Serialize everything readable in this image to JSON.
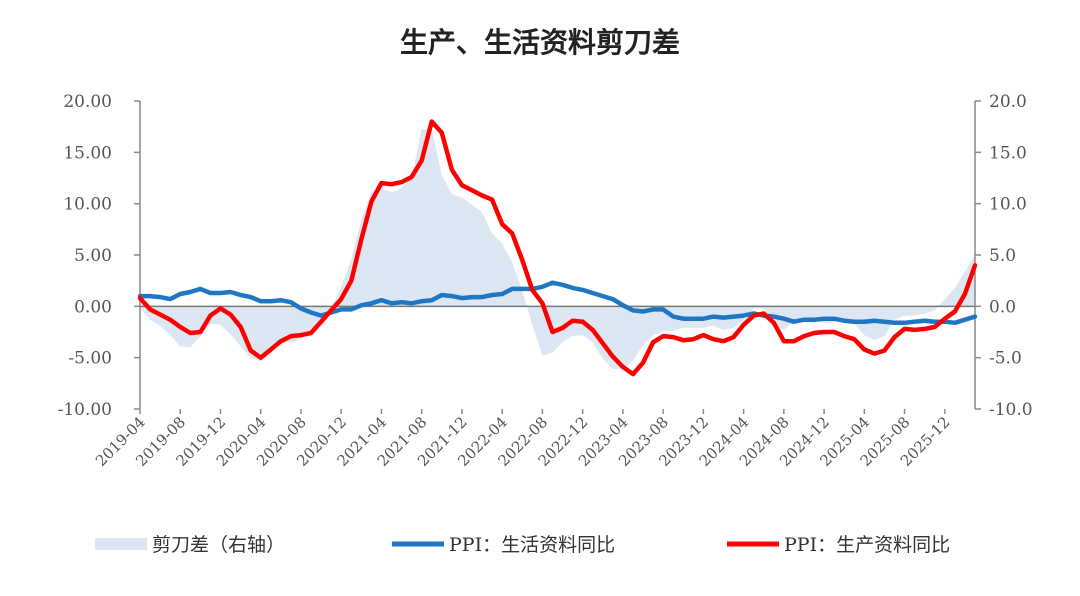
{
  "chart_data": {
    "type": "line",
    "title": "生产、生活资料剪刀差",
    "yleft_ticks": [
      "20.00",
      "15.00",
      "10.00",
      "5.00",
      "0.00",
      "-5.00",
      "-10.00"
    ],
    "yright_ticks": [
      "20.0",
      "15.0",
      "10.0",
      "5.0",
      "0.0",
      "-5.0",
      "-10.0"
    ],
    "ylim": [
      -10,
      20
    ],
    "x_ticks": [
      "2019-04",
      "2019-08",
      "2019-12",
      "2020-04",
      "2020-08",
      "2020-12",
      "2021-04",
      "2021-08",
      "2021-12",
      "2022-04",
      "2022-08",
      "2022-12",
      "2023-04",
      "2023-08",
      "2023-12",
      "2024-04",
      "2024-08",
      "2024-12",
      "2025-04",
      "2025-08",
      "2025-12"
    ],
    "x": [
      "2019-04",
      "2019-05",
      "2019-06",
      "2019-07",
      "2019-08",
      "2019-09",
      "2019-10",
      "2019-11",
      "2019-12",
      "2020-01",
      "2020-02",
      "2020-03",
      "2020-04",
      "2020-05",
      "2020-06",
      "2020-07",
      "2020-08",
      "2020-09",
      "2020-10",
      "2020-11",
      "2020-12",
      "2021-01",
      "2021-02",
      "2021-03",
      "2021-04",
      "2021-05",
      "2021-06",
      "2021-07",
      "2021-08",
      "2021-09",
      "2021-10",
      "2021-11",
      "2021-12",
      "2022-01",
      "2022-02",
      "2022-03",
      "2022-04",
      "2022-05",
      "2022-06",
      "2022-07",
      "2022-08",
      "2022-09",
      "2022-10",
      "2022-11",
      "2022-12",
      "2023-01",
      "2023-02",
      "2023-03",
      "2023-04",
      "2023-05",
      "2023-06",
      "2023-07",
      "2023-08",
      "2023-09",
      "2023-10",
      "2023-11",
      "2023-12",
      "2024-01",
      "2024-02",
      "2024-03",
      "2024-04",
      "2024-05",
      "2024-06",
      "2024-07",
      "2024-08",
      "2024-09",
      "2024-10",
      "2024-11",
      "2024-12",
      "2025-01",
      "2025-02",
      "2025-03",
      "2025-04",
      "2025-05",
      "2025-06",
      "2025-07",
      "2025-08",
      "2025-09",
      "2025-10",
      "2025-11",
      "2025-12",
      "2026-01",
      "2026-02",
      "2026-03"
    ],
    "series": [
      {
        "name": "剪刀差（右轴）",
        "kind": "area",
        "color": "#dde7f3",
        "values": [
          -0.2,
          -1.3,
          -1.9,
          -2.8,
          -3.9,
          -4.0,
          -2.9,
          -1.7,
          -1.8,
          -2.7,
          -3.9,
          -5.0,
          -5.4,
          -4.3,
          -3.5,
          -3.5,
          -3.2,
          -2.3,
          -1.2,
          -0.2,
          1.9,
          4.6,
          8.4,
          11.2,
          11.5,
          11.1,
          11.5,
          12.5,
          17.3,
          17.2,
          12.8,
          10.9,
          10.6,
          9.9,
          9.2,
          7.1,
          6.1,
          4.3,
          1.5,
          -1.8,
          -4.8,
          -4.5,
          -3.5,
          -2.9,
          -2.8,
          -3.5,
          -5.1,
          -6.1,
          -6.1,
          -5.3,
          -3.8,
          -2.8,
          -2.4,
          -2.4,
          -2.1,
          -2.1,
          -2.1,
          -1.9,
          -2.3,
          -2.1,
          -1.3,
          -0.2,
          -0.2,
          -1.8,
          -2.3,
          -1.5,
          -1.3,
          -1.4,
          -1.6,
          -1.6,
          -1.3,
          -1.7,
          -2.8,
          -3.3,
          -2.9,
          -1.3,
          -0.9,
          -0.9,
          -0.7,
          -0.4,
          0.7,
          1.8,
          3.4,
          5.0
        ]
      },
      {
        "name": "PPI：生活资料同比",
        "kind": "line",
        "color": "#1f77c4",
        "values": [
          1.0,
          1.0,
          0.9,
          0.7,
          1.2,
          1.4,
          1.7,
          1.3,
          1.3,
          1.4,
          1.1,
          0.9,
          0.5,
          0.5,
          0.6,
          0.4,
          -0.2,
          -0.6,
          -0.9,
          -0.6,
          -0.3,
          -0.3,
          0.1,
          0.3,
          0.6,
          0.3,
          0.4,
          0.3,
          0.5,
          0.6,
          1.1,
          1.0,
          0.8,
          0.9,
          0.9,
          1.1,
          1.2,
          1.7,
          1.7,
          1.7,
          1.9,
          2.3,
          2.1,
          1.8,
          1.6,
          1.3,
          1.0,
          0.7,
          0.1,
          -0.4,
          -0.5,
          -0.3,
          -0.3,
          -1.0,
          -1.2,
          -1.2,
          -1.2,
          -1.0,
          -1.1,
          -1.0,
          -0.9,
          -0.7,
          -0.9,
          -1.0,
          -1.2,
          -1.5,
          -1.3,
          -1.3,
          -1.2,
          -1.2,
          -1.4,
          -1.5,
          -1.5,
          -1.4,
          -1.5,
          -1.6,
          -1.6,
          -1.5,
          -1.4,
          -1.5,
          -1.5,
          -1.6,
          -1.3,
          -1.0
        ]
      },
      {
        "name": "PPI：生产资料同比",
        "kind": "line",
        "color": "#ff0000",
        "values": [
          0.8,
          -0.3,
          -0.8,
          -1.3,
          -2.0,
          -2.6,
          -2.5,
          -0.9,
          -0.2,
          -0.8,
          -2.0,
          -4.3,
          -5.0,
          -4.2,
          -3.4,
          -2.9,
          -2.8,
          -2.6,
          -1.5,
          -0.4,
          0.7,
          2.5,
          6.5,
          10.2,
          12.0,
          11.9,
          12.1,
          12.6,
          14.2,
          18.0,
          16.9,
          13.3,
          11.8,
          11.3,
          10.8,
          10.4,
          8.0,
          7.1,
          4.5,
          1.6,
          0.3,
          -2.5,
          -2.1,
          -1.4,
          -1.5,
          -2.3,
          -3.6,
          -4.9,
          -5.9,
          -6.6,
          -5.5,
          -3.5,
          -2.9,
          -3.0,
          -3.3,
          -3.2,
          -2.8,
          -3.2,
          -3.4,
          -3.0,
          -1.8,
          -0.9,
          -0.7,
          -1.6,
          -3.4,
          -3.4,
          -2.9,
          -2.6,
          -2.5,
          -2.5,
          -2.9,
          -3.2,
          -4.2,
          -4.6,
          -4.3,
          -3.0,
          -2.2,
          -2.3,
          -2.2,
          -2.0,
          -1.2,
          -0.5,
          1.2,
          4.0
        ]
      }
    ],
    "legend_position": "bottom",
    "grid": false
  }
}
